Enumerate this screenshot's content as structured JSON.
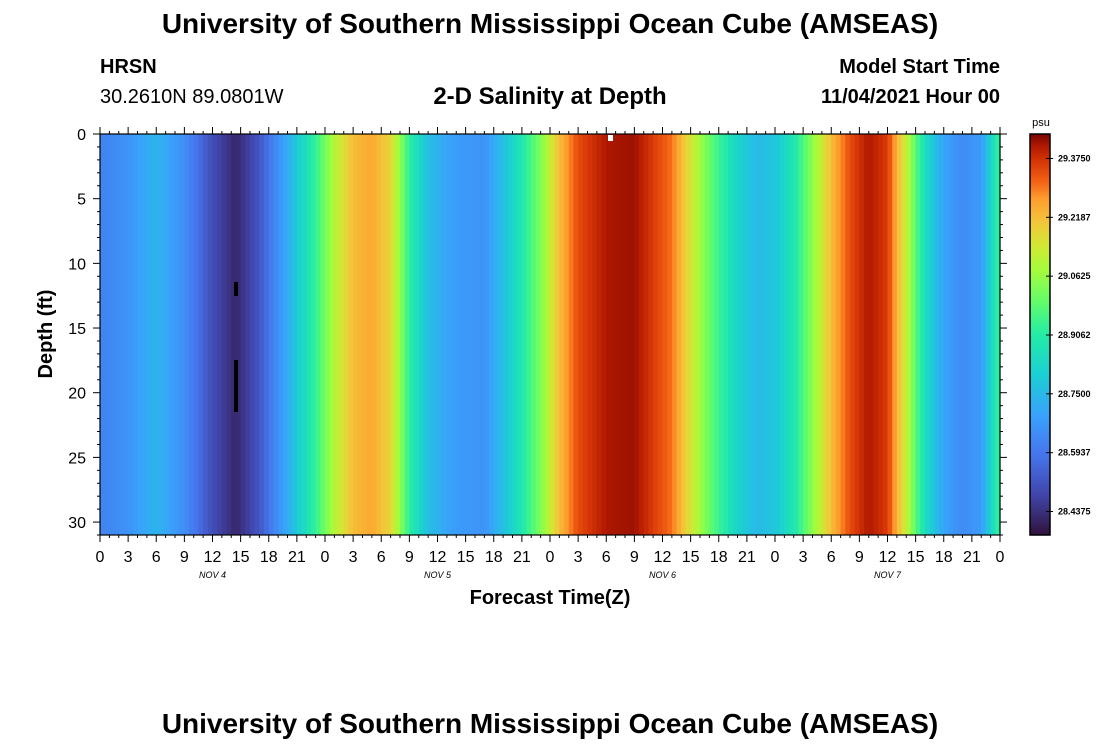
{
  "header": {
    "title": "University of Southern Mississippi Ocean Cube (AMSEAS)",
    "station": "HRSN",
    "coords": "30.2610N  89.0801W",
    "subtitle": "2-D Salinity at Depth",
    "start_label": "Model Start Time",
    "start_value": "11/04/2021 Hour 00"
  },
  "footer": {
    "title": "University of Southern Mississippi Ocean Cube (AMSEAS)"
  },
  "chart_data": {
    "type": "heatmap",
    "title": "2-D Salinity at Depth",
    "xlabel": "Forecast Time(Z)",
    "ylabel": "Depth (ft)",
    "ylim": [
      0,
      31
    ],
    "xlim": [
      0,
      96
    ],
    "y_ticks": [
      0,
      5,
      10,
      15,
      20,
      25,
      30
    ],
    "x_tick_labels": [
      "0",
      "3",
      "6",
      "9",
      "12",
      "15",
      "18",
      "21",
      "0",
      "3",
      "6",
      "9",
      "12",
      "15",
      "18",
      "21",
      "0",
      "3",
      "6",
      "9",
      "12",
      "15",
      "18",
      "21",
      "0",
      "3",
      "6",
      "9",
      "12",
      "15",
      "18",
      "21",
      "0"
    ],
    "day_labels": [
      {
        "label": "NOV 4",
        "hour": 12
      },
      {
        "label": "NOV 5",
        "hour": 36
      },
      {
        "label": "NOV 6",
        "hour": 60
      },
      {
        "label": "NOV 7",
        "hour": 84
      }
    ],
    "colorbar": {
      "unit": "psu",
      "min": 28.375,
      "max": 29.44,
      "labels": [
        "29.3750",
        "29.2187",
        "29.0625",
        "28.9062",
        "28.7500",
        "28.5937",
        "28.4375"
      ]
    },
    "salinity_by_hour": {
      "hours": [
        0,
        3,
        6,
        9,
        12,
        14.5,
        17,
        20,
        23,
        25,
        27,
        29,
        31,
        33,
        35,
        38,
        41,
        44,
        47,
        49,
        51,
        54,
        57,
        61,
        65,
        68,
        70,
        72,
        74,
        76,
        78,
        80,
        82,
        84,
        86,
        88,
        90,
        92,
        94,
        96
      ],
      "values": [
        28.62,
        28.66,
        28.74,
        28.65,
        28.5,
        28.42,
        28.52,
        28.72,
        28.93,
        29.1,
        29.22,
        29.25,
        29.18,
        28.92,
        28.76,
        28.68,
        28.66,
        28.82,
        29.03,
        29.22,
        29.34,
        29.41,
        29.42,
        29.3,
        29.0,
        28.82,
        28.75,
        28.78,
        28.88,
        29.05,
        29.22,
        29.34,
        29.41,
        29.36,
        29.12,
        28.85,
        28.7,
        28.64,
        28.68,
        28.95
      ]
    }
  }
}
